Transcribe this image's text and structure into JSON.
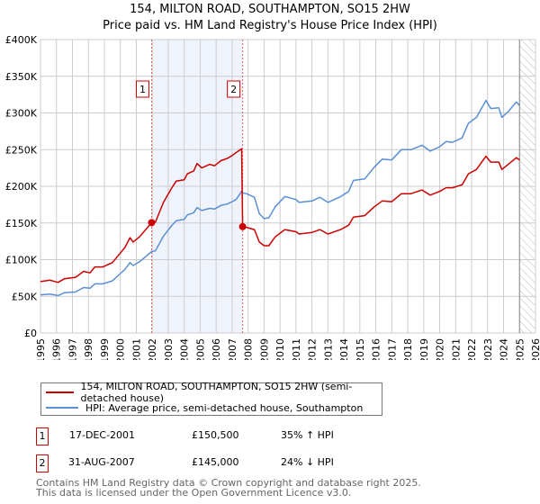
{
  "title": "154, MILTON ROAD, SOUTHAMPTON, SO15 2HW",
  "subtitle": "Price paid vs. HM Land Registry's House Price Index (HPI)",
  "colors": {
    "property": "#cc0000",
    "hpi": "#5b8fd4",
    "shade": "#eef3fc",
    "grid": "#cccccc"
  },
  "chart_data": {
    "type": "line",
    "title": "154, MILTON ROAD, SOUTHAMPTON, SO15 2HW",
    "xlim": [
      1995,
      2026
    ],
    "ylim": [
      0,
      400000
    ],
    "x_ticks": [
      "1995",
      "1996",
      "1997",
      "1998",
      "1999",
      "2000",
      "2001",
      "2002",
      "2003",
      "2004",
      "2005",
      "2006",
      "2007",
      "2008",
      "2009",
      "2010",
      "2011",
      "2012",
      "2013",
      "2014",
      "2015",
      "2016",
      "2017",
      "2018",
      "2019",
      "2020",
      "2021",
      "2022",
      "2023",
      "2024",
      "2025",
      "2026"
    ],
    "y_ticks": [
      {
        "v": 0,
        "label": "£0"
      },
      {
        "v": 50000,
        "label": "£50K"
      },
      {
        "v": 100000,
        "label": "£100K"
      },
      {
        "v": 150000,
        "label": "£150K"
      },
      {
        "v": 200000,
        "label": "£200K"
      },
      {
        "v": 250000,
        "label": "£250K"
      },
      {
        "v": 300000,
        "label": "£300K"
      },
      {
        "v": 350000,
        "label": "£350K"
      },
      {
        "v": 400000,
        "label": "£400K"
      }
    ],
    "grid": true,
    "forecast_from": 2025,
    "shaded_period": [
      2001.96,
      2007.66
    ],
    "series": [
      {
        "name": "154, MILTON ROAD, SOUTHAMPTON, SO15 2HW (semi-detached house)",
        "key": "property",
        "points": [
          [
            1995,
            70
          ],
          [
            1995.6,
            72
          ],
          [
            1996.1,
            69
          ],
          [
            1996.5,
            74
          ],
          [
            1997.2,
            76
          ],
          [
            1997.7,
            84
          ],
          [
            1998.1,
            82
          ],
          [
            1998.4,
            90
          ],
          [
            1998.9,
            90
          ],
          [
            1999.5,
            96
          ],
          [
            2000,
            109
          ],
          [
            2000.3,
            117
          ],
          [
            2000.6,
            130
          ],
          [
            2000.8,
            124
          ],
          [
            2001.2,
            131
          ],
          [
            2001.96,
            150.5
          ],
          [
            2002.2,
            151
          ],
          [
            2002.7,
            178
          ],
          [
            2003.2,
            197
          ],
          [
            2003.5,
            207
          ],
          [
            2004,
            209
          ],
          [
            2004.2,
            217
          ],
          [
            2004.6,
            221
          ],
          [
            2004.8,
            231
          ],
          [
            2005.1,
            225
          ],
          [
            2005.6,
            230
          ],
          [
            2005.9,
            228
          ],
          [
            2006.3,
            235
          ],
          [
            2006.7,
            238
          ],
          [
            2007,
            242
          ],
          [
            2007.25,
            246
          ],
          [
            2007.6,
            251
          ],
          [
            2007.66,
            145
          ],
          [
            2007.9,
            144
          ],
          [
            2008.4,
            141
          ],
          [
            2008.7,
            124
          ],
          [
            2009,
            119
          ],
          [
            2009.3,
            119
          ],
          [
            2009.7,
            131
          ],
          [
            2010.3,
            141
          ],
          [
            2011,
            138
          ],
          [
            2011.2,
            135
          ],
          [
            2012,
            137
          ],
          [
            2012.5,
            141
          ],
          [
            2013,
            135
          ],
          [
            2013.8,
            141
          ],
          [
            2014.3,
            147
          ],
          [
            2014.6,
            158
          ],
          [
            2015.3,
            160
          ],
          [
            2015.9,
            172
          ],
          [
            2016.4,
            180
          ],
          [
            2017,
            179
          ],
          [
            2017.6,
            190
          ],
          [
            2018.2,
            190
          ],
          [
            2018.9,
            195
          ],
          [
            2019.4,
            188
          ],
          [
            2020,
            193
          ],
          [
            2020.4,
            198
          ],
          [
            2020.8,
            198
          ],
          [
            2021.4,
            202
          ],
          [
            2021.8,
            217
          ],
          [
            2022.3,
            223
          ],
          [
            2022.9,
            241
          ],
          [
            2023.2,
            233
          ],
          [
            2023.7,
            233
          ],
          [
            2023.9,
            223
          ],
          [
            2024.3,
            230
          ],
          [
            2024.8,
            239
          ],
          [
            2025,
            236
          ]
        ]
      },
      {
        "name": "HPI: Average price, semi-detached house, Southampton",
        "key": "hpi",
        "points": [
          [
            1995,
            52
          ],
          [
            1995.6,
            53
          ],
          [
            1996.1,
            51
          ],
          [
            1996.5,
            55
          ],
          [
            1997.2,
            56
          ],
          [
            1997.7,
            62
          ],
          [
            1998.1,
            61
          ],
          [
            1998.4,
            67
          ],
          [
            1998.9,
            67
          ],
          [
            1999.5,
            71
          ],
          [
            2000,
            81
          ],
          [
            2000.3,
            87
          ],
          [
            2000.6,
            96
          ],
          [
            2000.8,
            92
          ],
          [
            2001.2,
            97
          ],
          [
            2001.96,
            111
          ],
          [
            2002.2,
            112
          ],
          [
            2002.7,
            132
          ],
          [
            2003.2,
            146
          ],
          [
            2003.5,
            153
          ],
          [
            2004,
            155
          ],
          [
            2004.2,
            161
          ],
          [
            2004.6,
            164
          ],
          [
            2004.8,
            171
          ],
          [
            2005.1,
            167
          ],
          [
            2005.6,
            170
          ],
          [
            2005.9,
            169
          ],
          [
            2006.3,
            174
          ],
          [
            2006.7,
            176
          ],
          [
            2007,
            179
          ],
          [
            2007.25,
            182
          ],
          [
            2007.6,
            193
          ],
          [
            2007.66,
            191
          ],
          [
            2007.9,
            190
          ],
          [
            2008.4,
            185
          ],
          [
            2008.7,
            163
          ],
          [
            2009,
            156
          ],
          [
            2009.3,
            157
          ],
          [
            2009.7,
            172
          ],
          [
            2010.3,
            186
          ],
          [
            2011,
            182
          ],
          [
            2011.2,
            178
          ],
          [
            2012,
            180
          ],
          [
            2012.5,
            185
          ],
          [
            2013,
            178
          ],
          [
            2013.8,
            186
          ],
          [
            2014.3,
            193
          ],
          [
            2014.6,
            208
          ],
          [
            2015.3,
            210
          ],
          [
            2015.9,
            226
          ],
          [
            2016.4,
            237
          ],
          [
            2017,
            236
          ],
          [
            2017.6,
            250
          ],
          [
            2018.2,
            250
          ],
          [
            2018.9,
            256
          ],
          [
            2019.4,
            248
          ],
          [
            2020,
            254
          ],
          [
            2020.4,
            261
          ],
          [
            2020.8,
            260
          ],
          [
            2021.4,
            266
          ],
          [
            2021.8,
            286
          ],
          [
            2022.3,
            294
          ],
          [
            2022.9,
            317
          ],
          [
            2023.2,
            306
          ],
          [
            2023.7,
            307
          ],
          [
            2023.9,
            294
          ],
          [
            2024.3,
            302
          ],
          [
            2024.8,
            315
          ],
          [
            2025,
            310
          ]
        ]
      }
    ],
    "value_unit": "thousands GBP",
    "sales": [
      {
        "label": "1",
        "x": 2001.96,
        "y": 150.5
      },
      {
        "label": "2",
        "x": 2007.66,
        "y": 145
      }
    ]
  },
  "legend": {
    "property": "154, MILTON ROAD, SOUTHAMPTON, SO15 2HW (semi-detached house)",
    "hpi": "HPI: Average price, semi-detached house, Southampton"
  },
  "transactions": [
    {
      "num": "1",
      "date": "17-DEC-2001",
      "price": "£150,500",
      "hpi": "35% ↑ HPI"
    },
    {
      "num": "2",
      "date": "31-AUG-2007",
      "price": "£145,000",
      "hpi": "24% ↓ HPI"
    }
  ],
  "footer": {
    "line1": "Contains HM Land Registry data © Crown copyright and database right 2025.",
    "line2": "This data is licensed under the Open Government Licence v3.0."
  }
}
